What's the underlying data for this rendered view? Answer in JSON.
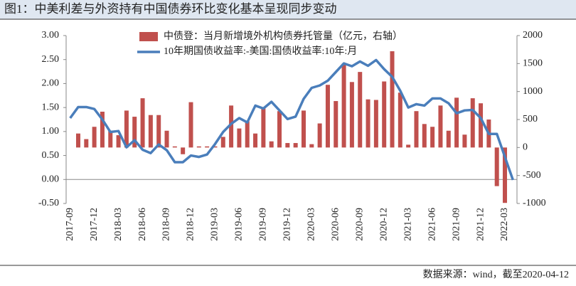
{
  "title": "图1：中美利差与外资持有中国债券环比变化基本呈现同步变动",
  "source": "数据来源：wind，截至2020-04-12",
  "chart_data": {
    "type": "bar_line",
    "categories": [
      "2017-09",
      null,
      null,
      "2017-12",
      null,
      null,
      "2018-03",
      null,
      null,
      "2018-06",
      null,
      null,
      "2018-09",
      null,
      null,
      "2018-12",
      null,
      null,
      "2019-03",
      null,
      null,
      "2019-06",
      null,
      null,
      "2019-09",
      null,
      null,
      "2019-12",
      null,
      null,
      "2020-03",
      null,
      null,
      "2020-06",
      null,
      null,
      "2020-09",
      null,
      null,
      "2020-12",
      null,
      null,
      "2021-03",
      null,
      null,
      "2021-06",
      null,
      null,
      "2021-09",
      null,
      null,
      "2021-12",
      null,
      null,
      "2022-03",
      null
    ],
    "series": [
      {
        "name": "中债登：当月新增境外机构债券托管量（亿元，右轴）",
        "type": "bar",
        "axis": "y2",
        "color": "#c0504d",
        "values": [
          0,
          250,
          150,
          370,
          640,
          300,
          220,
          660,
          550,
          880,
          580,
          580,
          300,
          20,
          -120,
          810,
          20,
          20,
          20,
          190,
          750,
          340,
          470,
          250,
          700,
          110,
          650,
          80,
          80,
          660,
          60,
          430,
          1120,
          830,
          1500,
          1170,
          1350,
          860,
          850,
          1180,
          1720,
          980,
          50,
          650,
          420,
          370,
          750,
          300,
          890,
          230,
          880,
          790,
          500,
          -690,
          -990,
          0
        ]
      },
      {
        "name": "10年期国债收益率:-美国:国债收益率:10年:月",
        "type": "line",
        "axis": "y",
        "color": "#4a7ebb",
        "values": [
          1.28,
          1.51,
          1.51,
          1.47,
          1.25,
          0.99,
          1.01,
          0.67,
          0.82,
          0.62,
          0.55,
          0.73,
          0.61,
          0.36,
          0.36,
          0.5,
          0.47,
          0.52,
          0.74,
          0.99,
          1.16,
          1.28,
          1.19,
          1.54,
          1.48,
          1.62,
          1.44,
          1.26,
          1.31,
          1.68,
          1.91,
          1.96,
          2.06,
          2.24,
          2.42,
          2.36,
          2.46,
          2.37,
          2.49,
          2.3,
          2.14,
          1.85,
          1.5,
          1.57,
          1.54,
          1.69,
          1.69,
          1.59,
          1.38,
          1.44,
          1.45,
          1.28,
          0.95,
          0.95,
          0.47,
          -0.01
        ]
      }
    ],
    "ylim": [
      -0.5,
      3
    ],
    "yticks": [
      {
        "value": 3,
        "label": "3.00"
      },
      {
        "value": 2.5,
        "label": "2.50"
      },
      {
        "value": 2,
        "label": "2.00"
      },
      {
        "value": 1.5,
        "label": "1.50"
      },
      {
        "value": 1,
        "label": "1.00"
      },
      {
        "value": 0.5,
        "label": "0.50"
      },
      {
        "value": 0,
        "label": "0.00"
      },
      {
        "value": -0.5,
        "label": "-0.50"
      }
    ],
    "y2lim": [
      -1000,
      2000
    ],
    "y2ticks": [
      2000,
      1500,
      1000,
      500,
      0,
      -500,
      -1000
    ]
  }
}
